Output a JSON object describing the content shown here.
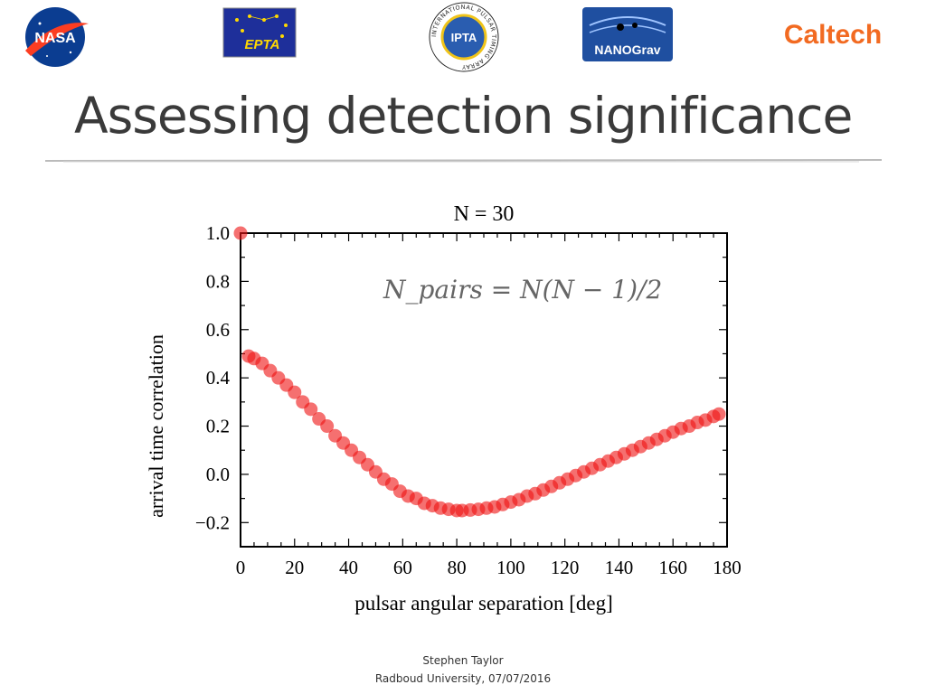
{
  "header": {
    "logos": [
      {
        "name": "NASA",
        "text": "NASA"
      },
      {
        "name": "EPTA",
        "text": "EPTA"
      },
      {
        "name": "IPTA",
        "text": "IPTA",
        "ring_text": "INTERNATIONAL PULSAR TIMING ARRAY"
      },
      {
        "name": "NANOGrav",
        "text": "NANOGrav"
      },
      {
        "name": "Caltech",
        "text": "Caltech"
      }
    ]
  },
  "slide": {
    "title": "Assessing detection significance"
  },
  "colors": {
    "title": "#3a3a3a",
    "points": "#ee1111",
    "annotation": "#666666",
    "caltech": "#f26a21",
    "nasa": "#0b3d91"
  },
  "chart_data": {
    "type": "scatter",
    "title": "N = 30",
    "xlabel": "pulsar angular separation [deg]",
    "ylabel": "arrival time correlation",
    "xlim": [
      0,
      180
    ],
    "ylim": [
      -0.3,
      1.0
    ],
    "x_ticks": [
      "0",
      "20",
      "40",
      "60",
      "80",
      "100",
      "120",
      "140",
      "160",
      "180"
    ],
    "y_ticks": [
      "−0.2",
      "0.0",
      "0.2",
      "0.4",
      "0.6",
      "0.8",
      "1.0"
    ],
    "annotation": "N_pairs = N(N − 1)/2",
    "grid": false,
    "series": [
      {
        "marker": "circle",
        "x": [
          0,
          3,
          5,
          8,
          11,
          14,
          17,
          20,
          23,
          26,
          29,
          32,
          35,
          38,
          41,
          44,
          47,
          50,
          53,
          56,
          59,
          62,
          65,
          68,
          71,
          74,
          77,
          80,
          82,
          85,
          88,
          91,
          94,
          97,
          100,
          103,
          106,
          109,
          112,
          115,
          118,
          121,
          124,
          127,
          130,
          133,
          136,
          139,
          142,
          145,
          148,
          151,
          154,
          157,
          160,
          163,
          166,
          169,
          172,
          175,
          177
        ],
        "y": [
          1.0,
          0.49,
          0.48,
          0.46,
          0.43,
          0.4,
          0.37,
          0.34,
          0.3,
          0.27,
          0.23,
          0.2,
          0.16,
          0.13,
          0.1,
          0.07,
          0.04,
          0.01,
          -0.02,
          -0.04,
          -0.07,
          -0.09,
          -0.1,
          -0.12,
          -0.13,
          -0.14,
          -0.145,
          -0.15,
          -0.15,
          -0.148,
          -0.145,
          -0.14,
          -0.135,
          -0.125,
          -0.115,
          -0.105,
          -0.09,
          -0.08,
          -0.065,
          -0.05,
          -0.035,
          -0.02,
          -0.005,
          0.01,
          0.025,
          0.04,
          0.055,
          0.07,
          0.085,
          0.1,
          0.115,
          0.13,
          0.145,
          0.16,
          0.175,
          0.19,
          0.2,
          0.215,
          0.225,
          0.24,
          0.25
        ]
      }
    ]
  },
  "footer": {
    "author": "Stephen Taylor",
    "venue": "Radboud University, 07/07/2016"
  }
}
